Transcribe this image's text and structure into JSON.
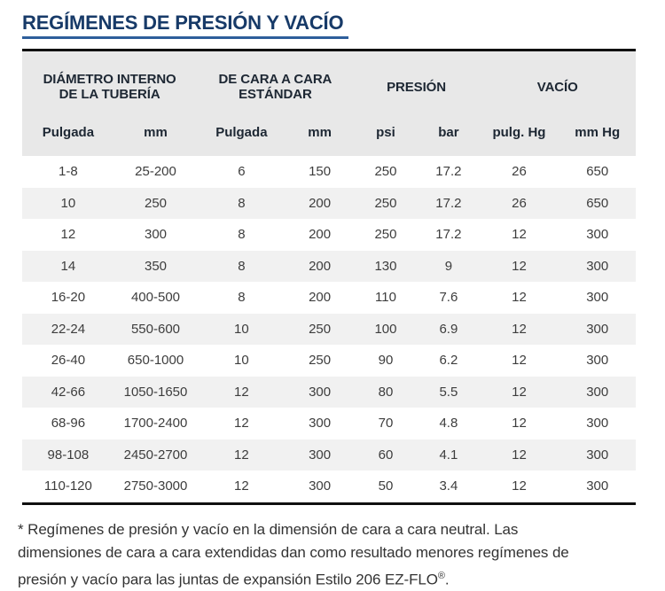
{
  "title": "REGÍMENES DE PRESIÓN Y VACÍO",
  "colors": {
    "title_navy": "#173a68",
    "title_rule_blue": "#2e5f9b",
    "table_border_black": "#101010",
    "header_background": "#e8e8e8",
    "alternate_row_background": "#f1f1f1",
    "header_text": "#1d2733",
    "body_text": "#3d3d3d"
  },
  "chart_data": {
    "type": "table",
    "title": "REGÍMENES DE PRESIÓN Y VACÍO",
    "column_groups": [
      {
        "label": "DIÁMETRO INTERNO\nDE LA TUBERÍA",
        "span": 2
      },
      {
        "label": "DE CARA A CARA\nESTÁNDAR",
        "span": 2
      },
      {
        "label": "PRESIÓN",
        "span": 2
      },
      {
        "label": "VACÍO",
        "span": 2
      }
    ],
    "columns": [
      "Pulgada",
      "mm",
      "Pulgada",
      "mm",
      "psi",
      "bar",
      "pulg. Hg",
      "mm Hg"
    ],
    "rows": [
      [
        "1-8",
        "25-200",
        "6",
        "150",
        "250",
        "17.2",
        "26",
        "650"
      ],
      [
        "10",
        "250",
        "8",
        "200",
        "250",
        "17.2",
        "26",
        "650"
      ],
      [
        "12",
        "300",
        "8",
        "200",
        "250",
        "17.2",
        "12",
        "300"
      ],
      [
        "14",
        "350",
        "8",
        "200",
        "130",
        "9",
        "12",
        "300"
      ],
      [
        "16-20",
        "400-500",
        "8",
        "200",
        "110",
        "7.6",
        "12",
        "300"
      ],
      [
        "22-24",
        "550-600",
        "10",
        "250",
        "100",
        "6.9",
        "12",
        "300"
      ],
      [
        "26-40",
        "650-1000",
        "10",
        "250",
        "90",
        "6.2",
        "12",
        "300"
      ],
      [
        "42-66",
        "1050-1650",
        "12",
        "300",
        "80",
        "5.5",
        "12",
        "300"
      ],
      [
        "68-96",
        "1700-2400",
        "12",
        "300",
        "70",
        "4.8",
        "12",
        "300"
      ],
      [
        "98-108",
        "2450-2700",
        "12",
        "300",
        "60",
        "4.1",
        "12",
        "300"
      ],
      [
        "110-120",
        "2750-3000",
        "12",
        "300",
        "50",
        "3.4",
        "12",
        "300"
      ]
    ],
    "column_widths_percent": [
      15,
      13.5,
      14.5,
      11,
      10.5,
      10,
      13,
      12.5
    ]
  },
  "footnote": {
    "text": "* Regímenes de presión y vacío en la dimensión de cara a cara neutral. Las dimensiones de cara a cara extendidas dan como resultado menores regímenes de presión y vacío para las juntas de expansión Estilo 206 EZ-FLO",
    "registered_mark": "®",
    "suffix": "."
  }
}
